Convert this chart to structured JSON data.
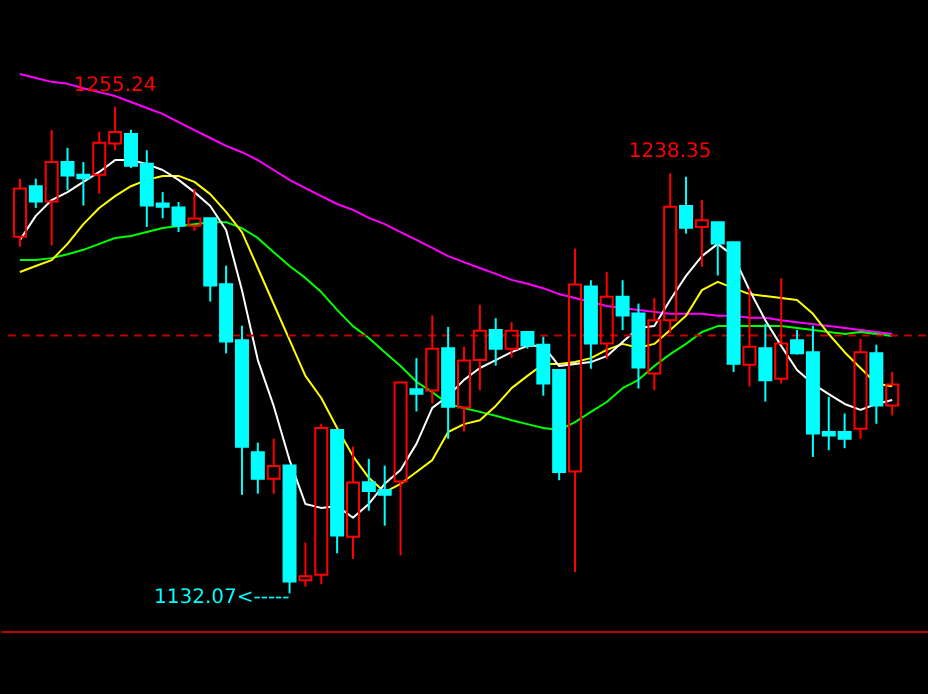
{
  "chart_data": {
    "type": "candlestick",
    "tick_labels": false,
    "categories": [
      null,
      null,
      null,
      null,
      null,
      null,
      null,
      null,
      null,
      null,
      null,
      null,
      null,
      null,
      null,
      null,
      null,
      null,
      null,
      null,
      null,
      null,
      null,
      null,
      null,
      null,
      null,
      null,
      null,
      null,
      null,
      null,
      null,
      null,
      null,
      null,
      null,
      null,
      null,
      null,
      null,
      null,
      null,
      null,
      null,
      null,
      null,
      null,
      null,
      null,
      null,
      null,
      null,
      null,
      null,
      null
    ],
    "ohlc": [
      [
        1222.3,
        1237.0,
        1219.8,
        1234.5
      ],
      [
        1235.1,
        1237.0,
        1229.6,
        1231.2
      ],
      [
        1231.2,
        1249.3,
        1220.1,
        1241.2
      ],
      [
        1241.2,
        1244.8,
        1234.1,
        1237.8
      ],
      [
        1238.0,
        1241.2,
        1230.2,
        1237.1
      ],
      [
        1238.0,
        1248.9,
        1233.2,
        1246.1
      ],
      [
        1245.9,
        1255.24,
        1244.2,
        1248.8
      ],
      [
        1248.3,
        1249.4,
        1239.7,
        1240.3
      ],
      [
        1240.8,
        1244.2,
        1224.8,
        1230.2
      ],
      [
        1230.7,
        1233.6,
        1227.0,
        1229.9
      ],
      [
        1229.7,
        1231.1,
        1223.5,
        1225.1
      ],
      [
        1225.1,
        1234.5,
        1223.8,
        1226.9
      ],
      [
        1227.0,
        1227.0,
        1205.9,
        1210.0
      ],
      [
        1210.3,
        1215.0,
        1192.8,
        1195.8
      ],
      [
        1196.1,
        1199.8,
        1157.0,
        1169.2
      ],
      [
        1167.8,
        1170.2,
        1157.3,
        1161.1
      ],
      [
        1161.1,
        1171.2,
        1157.3,
        1164.3
      ],
      [
        1164.4,
        1164.4,
        1132.07,
        1135.1
      ],
      [
        1135.4,
        1144.9,
        1133.8,
        1136.4
      ],
      [
        1136.8,
        1175.0,
        1134.4,
        1173.9
      ],
      [
        1173.4,
        1173.4,
        1142.2,
        1146.7
      ],
      [
        1146.4,
        1169.2,
        1140.8,
        1160.1
      ],
      [
        1160.2,
        1166.1,
        1153.0,
        1158.0
      ],
      [
        1158.2,
        1164.4,
        1149.2,
        1157.0
      ],
      [
        1160.4,
        1185.4,
        1141.7,
        1185.4
      ],
      [
        1183.7,
        1191.6,
        1178.1,
        1182.6
      ],
      [
        1183.4,
        1202.4,
        1180.1,
        1194.0
      ],
      [
        1194.1,
        1199.5,
        1171.2,
        1179.3
      ],
      [
        1179.1,
        1194.5,
        1173.0,
        1191.0
      ],
      [
        1191.1,
        1205.1,
        1183.5,
        1198.5
      ],
      [
        1198.7,
        1201.7,
        1189.7,
        1194.0
      ],
      [
        1194.0,
        1200.7,
        1191.7,
        1198.5
      ],
      [
        1198.2,
        1198.2,
        1194.0,
        1194.8
      ],
      [
        1195.0,
        1197.0,
        1182.1,
        1185.2
      ],
      [
        1188.6,
        1188.6,
        1160.7,
        1162.8
      ],
      [
        1162.9,
        1219.3,
        1137.5,
        1210.2
      ],
      [
        1209.7,
        1211.3,
        1188.9,
        1195.3
      ],
      [
        1195.3,
        1213.4,
        1191.4,
        1207.1
      ],
      [
        1207.1,
        1211.3,
        1198.7,
        1202.4
      ],
      [
        1202.9,
        1205.4,
        1183.9,
        1189.2
      ],
      [
        1187.7,
        1206.8,
        1183.5,
        1201.2
      ],
      [
        1201.2,
        1238.35,
        1197.9,
        1229.9
      ],
      [
        1230.1,
        1237.5,
        1223.1,
        1224.6
      ],
      [
        1224.8,
        1231.6,
        1214.7,
        1226.5
      ],
      [
        1226.0,
        1226.0,
        1212.5,
        1220.6
      ],
      [
        1220.9,
        1220.9,
        1188.1,
        1190.2
      ],
      [
        1189.9,
        1209.2,
        1184.4,
        1194.5
      ],
      [
        1194.1,
        1200.3,
        1180.6,
        1186.0
      ],
      [
        1186.4,
        1211.8,
        1185.2,
        1195.3
      ],
      [
        1196.1,
        1198.7,
        1192.5,
        1192.8
      ],
      [
        1193.1,
        1199.8,
        1166.6,
        1172.5
      ],
      [
        1172.9,
        1181.8,
        1168.3,
        1172.0
      ],
      [
        1172.9,
        1177.6,
        1168.8,
        1171.2
      ],
      [
        1173.7,
        1196.5,
        1171.2,
        1193.1
      ],
      [
        1192.8,
        1195.0,
        1175.0,
        1179.6
      ],
      [
        1179.6,
        1188.1,
        1177.1,
        1184.9
      ]
    ],
    "colors": [
      "#ff0000",
      "#00ffff",
      "#ff0000",
      "#00ffff",
      "#00ffff",
      "#ff0000",
      "#ff0000",
      "#00ffff",
      "#00ffff",
      "#00ffff",
      "#00ffff",
      "#ff0000",
      "#00ffff",
      "#00ffff",
      "#00ffff",
      "#00ffff",
      "#ff0000",
      "#00ffff",
      "#ff0000",
      "#ff0000",
      "#00ffff",
      "#ff0000",
      "#00ffff",
      "#00ffff",
      "#ff0000",
      "#00ffff",
      "#ff0000",
      "#00ffff",
      "#ff0000",
      "#ff0000",
      "#00ffff",
      "#ff0000",
      "#00ffff",
      "#00ffff",
      "#00ffff",
      "#ff0000",
      "#00ffff",
      "#ff0000",
      "#00ffff",
      "#00ffff",
      "#ff0000",
      "#ff0000",
      "#00ffff",
      "#ff0000",
      "#00ffff",
      "#00ffff",
      "#ff0000",
      "#00ffff",
      "#ff0000",
      "#00ffff",
      "#00ffff",
      "#00ffff",
      "#00ffff",
      "#ff0000",
      "#00ffff",
      "#ff0000"
    ],
    "series": [
      {
        "type": "line",
        "color": "#ff00ff",
        "values": [
          1263.5,
          1262.5,
          1261.5,
          1261.0,
          1259.9,
          1258.9,
          1257.9,
          1256.4,
          1254.9,
          1253.4,
          1251.3,
          1249.3,
          1247.3,
          1245.3,
          1243.7,
          1241.7,
          1239.2,
          1236.7,
          1234.6,
          1232.6,
          1230.6,
          1229.1,
          1227.1,
          1225.5,
          1223.5,
          1221.5,
          1219.5,
          1217.4,
          1215.9,
          1214.4,
          1212.9,
          1211.4,
          1210.4,
          1209.3,
          1207.8,
          1206.8,
          1205.8,
          1204.8,
          1204.3,
          1203.8,
          1203.3,
          1202.8,
          1202.8,
          1202.8,
          1202.3,
          1202.3,
          1201.8,
          1201.8,
          1201.2,
          1200.7,
          1200.2,
          1199.7,
          1199.2,
          1198.7,
          1198.2,
          1197.7
        ]
      },
      {
        "type": "line",
        "color": "#00ff00",
        "values": [
          1216.4,
          1216.4,
          1216.9,
          1217.9,
          1219.0,
          1220.5,
          1222.0,
          1222.5,
          1223.5,
          1224.5,
          1225.0,
          1225.5,
          1226.0,
          1226.0,
          1224.5,
          1222.0,
          1218.4,
          1214.9,
          1211.9,
          1208.3,
          1203.8,
          1199.7,
          1196.7,
          1193.1,
          1189.6,
          1185.6,
          1183.0,
          1180.0,
          1179.0,
          1178.0,
          1177.0,
          1175.9,
          1174.9,
          1173.9,
          1173.4,
          1175.4,
          1178.0,
          1180.5,
          1184.0,
          1186.1,
          1189.6,
          1192.6,
          1195.2,
          1198.2,
          1199.7,
          1199.7,
          1199.7,
          1199.7,
          1199.7,
          1199.2,
          1198.7,
          1198.2,
          1197.7,
          1198.2,
          1197.7,
          1197.2
        ]
      },
      {
        "type": "line",
        "color": "#ffff00",
        "values": [
          1213.4,
          1214.9,
          1216.4,
          1220.5,
          1225.5,
          1229.6,
          1232.6,
          1235.1,
          1236.7,
          1237.7,
          1237.7,
          1236.2,
          1233.1,
          1228.6,
          1223.5,
          1214.4,
          1205.3,
          1196.2,
          1187.1,
          1181.5,
          1173.9,
          1166.8,
          1161.3,
          1157.7,
          1159.8,
          1162.8,
          1165.8,
          1172.9,
          1174.9,
          1175.9,
          1179.5,
          1184.0,
          1187.1,
          1190.1,
          1190.1,
          1190.6,
          1191.6,
          1193.7,
          1195.2,
          1194.2,
          1195.2,
          1198.7,
          1202.3,
          1208.8,
          1210.9,
          1209.3,
          1207.8,
          1207.3,
          1206.8,
          1206.3,
          1202.8,
          1197.7,
          1193.1,
          1189.1,
          1185.1,
          1184.5
        ]
      },
      {
        "type": "line",
        "color": "#ffffff",
        "values": [
          1221.5,
          1227.6,
          1231.6,
          1233.6,
          1236.2,
          1238.7,
          1241.7,
          1241.7,
          1240.7,
          1239.2,
          1236.7,
          1233.6,
          1230.1,
          1224.0,
          1208.8,
          1191.1,
          1179.5,
          1165.8,
          1154.7,
          1153.7,
          1154.2,
          1151.2,
          1154.7,
          1159.8,
          1163.3,
          1169.9,
          1179.0,
          1182.0,
          1186.1,
          1189.1,
          1191.1,
          1193.1,
          1194.7,
          1194.7,
          1189.6,
          1190.1,
          1190.6,
          1192.1,
          1195.7,
          1199.2,
          1199.7,
          1206.3,
          1212.4,
          1217.4,
          1220.5,
          1217.4,
          1208.8,
          1201.2,
          1194.7,
          1188.6,
          1185.1,
          1182.5,
          1180.0,
          1178.5,
          1180.0,
          1181.0
        ]
      }
    ],
    "ref_lines": [
      {
        "axis": "y",
        "value": 1197.3,
        "color": "#c00000",
        "line_style": "dashed"
      }
    ],
    "annotations": [
      {
        "text": "1255.24",
        "y": 1255.24
      },
      {
        "text": "1238.35",
        "y": 1238.35
      },
      "1132.07<-----"
    ]
  }
}
